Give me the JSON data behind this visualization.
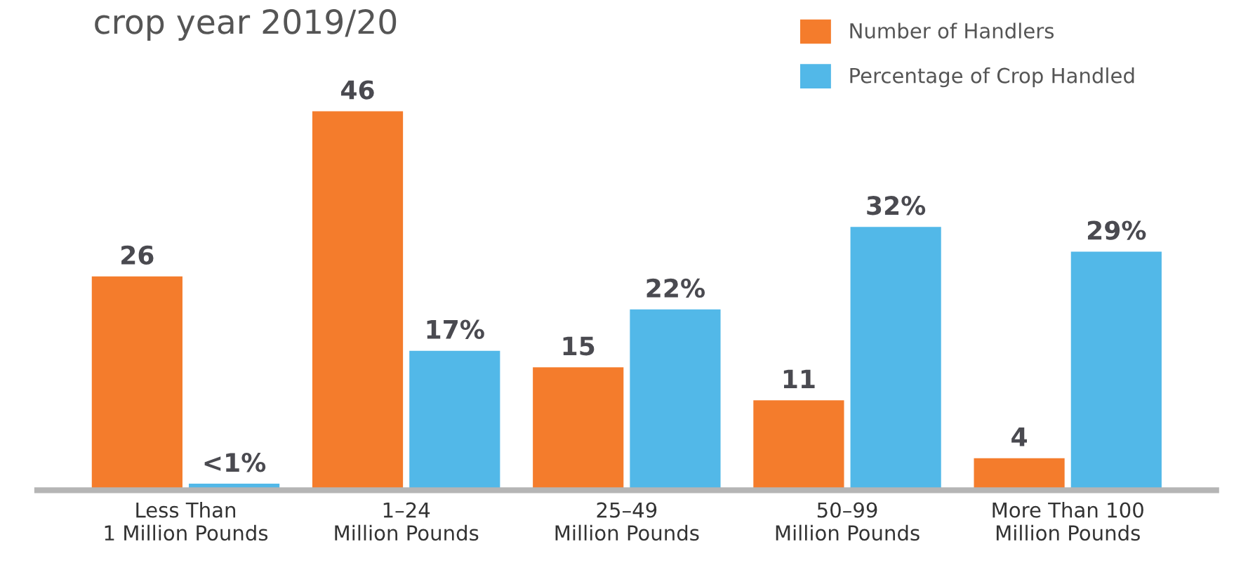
{
  "chart_data": {
    "type": "bar",
    "title": "crop year 2019/20",
    "categories": [
      "Less Than\n1 Million Pounds",
      "1–24\nMillion Pounds",
      "25–49\nMillion Pounds",
      "50–99\nMillion Pounds",
      "More Than 100\nMillion Pounds"
    ],
    "series": [
      {
        "name": "Number of Handlers",
        "color": "#f47c2c",
        "values": [
          26,
          46,
          15,
          11,
          4
        ],
        "value_labels": [
          "26",
          "46",
          "15",
          "11",
          "4"
        ]
      },
      {
        "name": "Percentage of Crop Handled",
        "color": "#52b8e8",
        "values": [
          0.9,
          17,
          22,
          32,
          29
        ],
        "value_labels": [
          "<1%",
          "17%",
          "22%",
          "32%",
          "29%"
        ]
      }
    ],
    "legend": "top right",
    "grid": false
  }
}
